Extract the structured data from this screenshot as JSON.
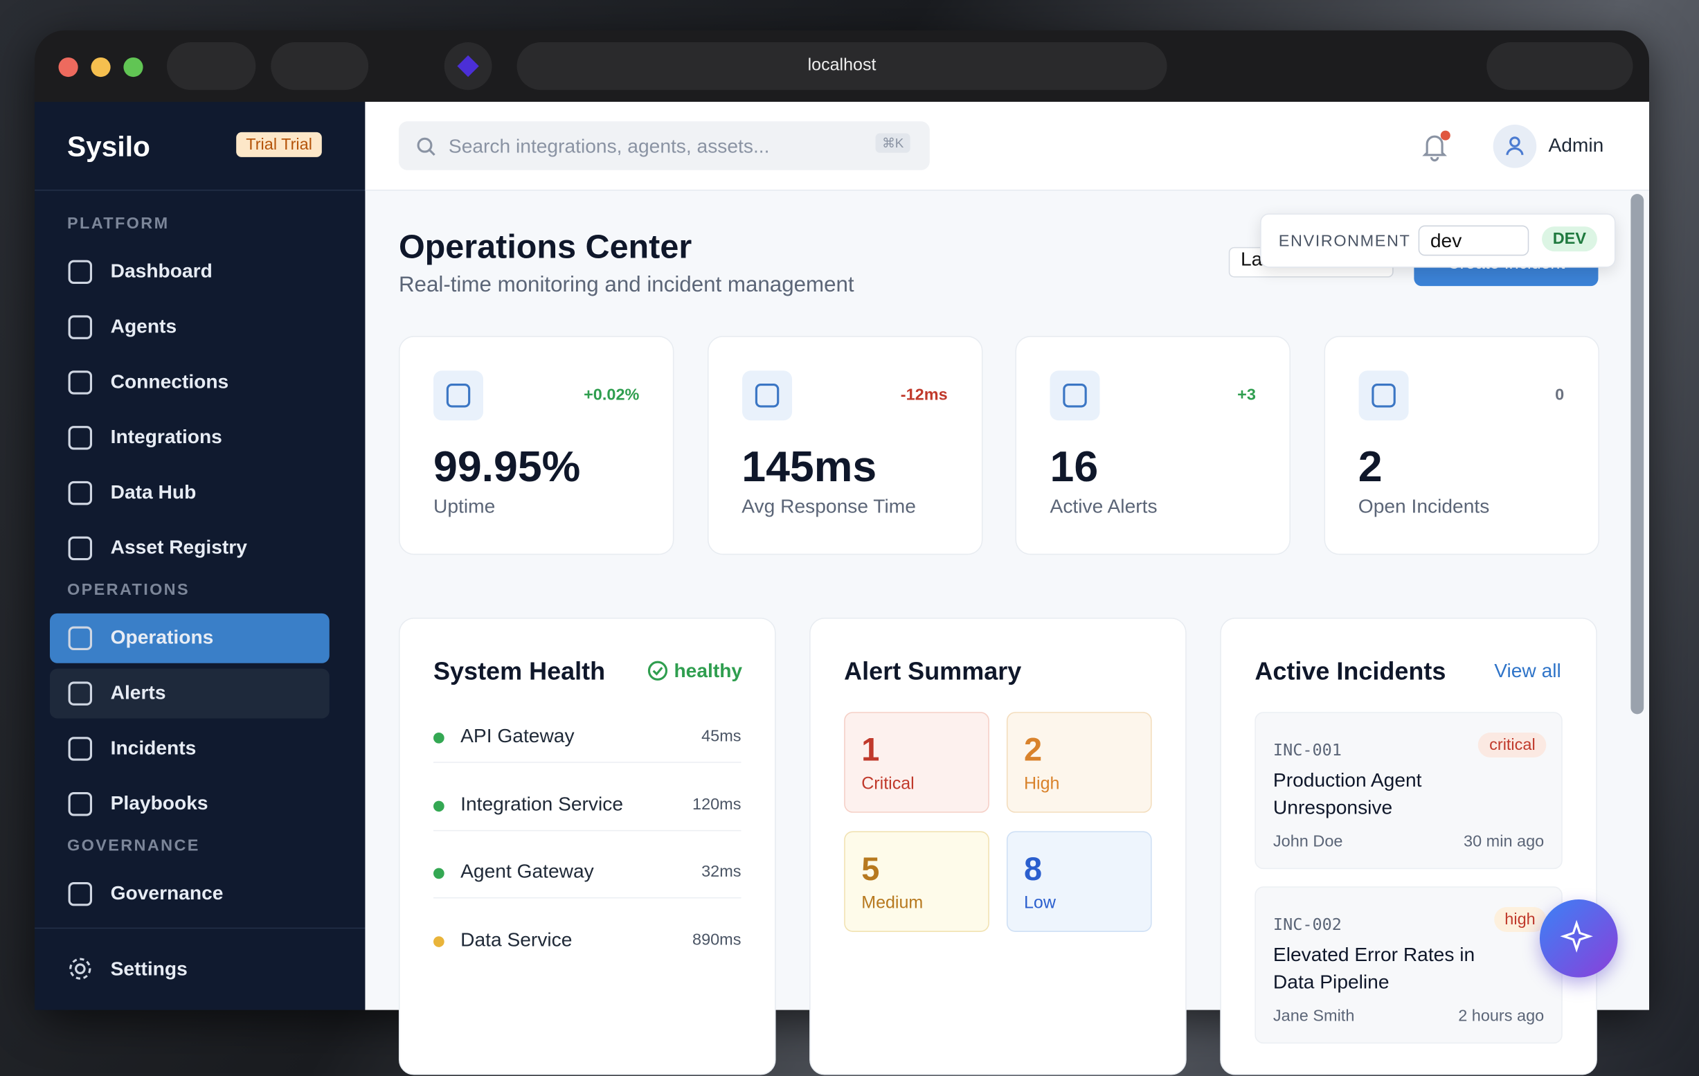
{
  "browser": {
    "url": "localhost"
  },
  "sidebar": {
    "brand": "Sysilo",
    "badge": "Trial Trial",
    "sections": [
      {
        "title": "PLATFORM",
        "items": [
          "Dashboard",
          "Agents",
          "Connections",
          "Integrations",
          "Data Hub",
          "Asset Registry"
        ]
      },
      {
        "title": "OPERATIONS",
        "items": [
          "Operations",
          "Alerts",
          "Incidents",
          "Playbooks"
        ]
      },
      {
        "title": "GOVERNANCE",
        "items": [
          "Governance"
        ]
      }
    ],
    "settings": "Settings"
  },
  "header": {
    "search_placeholder": "Search integrations, agents, assets...",
    "shortcut": "⌘K",
    "user": "Admin"
  },
  "page": {
    "title": "Operations Center",
    "subtitle": "Real-time monitoring and incident management",
    "time_range": "Last 1 Hours",
    "create_button": "Create Incident"
  },
  "environment": {
    "label": "ENVIRONMENT",
    "value": "dev",
    "badge": "DEV"
  },
  "stats": [
    {
      "change": "+0.02%",
      "value": "99.95%",
      "label": "Uptime"
    },
    {
      "change": "-12ms",
      "value": "145ms",
      "label": "Avg Response Time"
    },
    {
      "change": "+3",
      "value": 16,
      "label": "Active Alerts"
    },
    {
      "change": 0,
      "value": 2,
      "label": "Open Incidents"
    }
  ],
  "system_health": {
    "title": "System Health",
    "status": "healthy",
    "services": [
      {
        "name": "API Gateway",
        "latency": "45ms"
      },
      {
        "name": "Integration Service",
        "latency": "120ms"
      },
      {
        "name": "Agent Gateway",
        "latency": "32ms"
      },
      {
        "name": "Data Service",
        "latency": "890ms"
      }
    ]
  },
  "alert_summary": {
    "title": "Alert Summary",
    "counts": [
      {
        "count": 1,
        "label": "Critical"
      },
      {
        "count": 2,
        "label": "High"
      },
      {
        "count": 5,
        "label": "Medium"
      },
      {
        "count": 8,
        "label": "Low"
      }
    ]
  },
  "active_incidents": {
    "title": "Active Incidents",
    "view_all": "View all",
    "incidents": [
      {
        "id": "INC-001",
        "severity": "critical",
        "title": "Production Agent Unresponsive",
        "assignee": "John Doe",
        "time": "30 min ago"
      },
      {
        "id": "INC-002",
        "severity": "high",
        "title": "Elevated Error Rates in Data Pipeline",
        "assignee": "Jane Smith",
        "time": "2 hours ago"
      }
    ]
  }
}
